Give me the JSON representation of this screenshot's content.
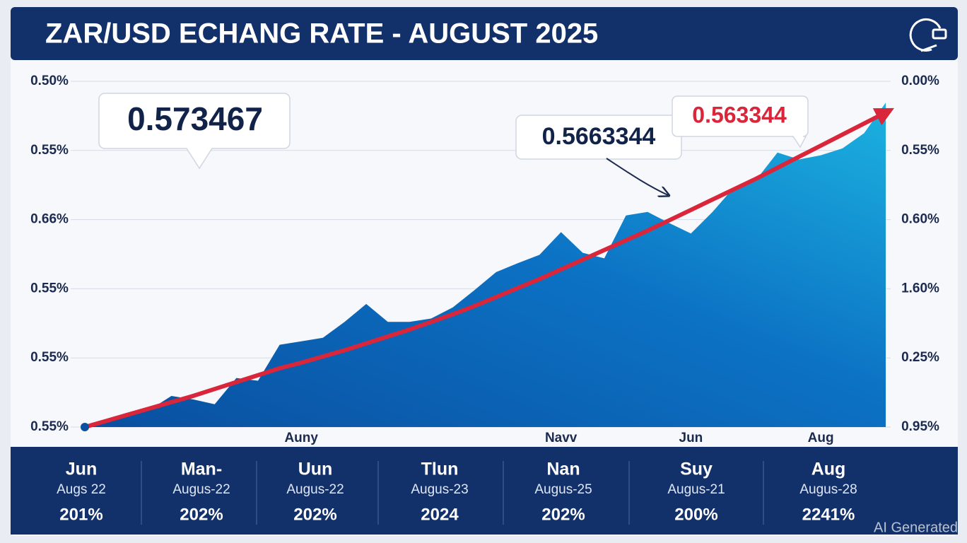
{
  "chart_data": {
    "type": "area",
    "title": "ZAR/USD ECHANG RATE - AUGUST 2025",
    "categories": [
      null,
      null,
      null,
      null,
      null,
      null,
      null,
      null,
      null,
      null,
      "Auny",
      null,
      null,
      null,
      null,
      null,
      null,
      null,
      null,
      null,
      null,
      null,
      "Navv",
      null,
      null,
      null,
      null,
      null,
      "Jun",
      null,
      null,
      null,
      null,
      null,
      "Aug",
      null,
      null,
      null
    ],
    "series": [
      {
        "color": "#0b6cc0",
        "values": [
          0,
          0.06,
          0.17,
          0.25,
          0.45,
          0.4,
          0.33,
          0.71,
          0.67,
          1.19,
          1.24,
          1.29,
          1.52,
          1.78,
          1.52,
          1.52,
          1.57,
          1.73,
          1.98,
          2.24,
          2.37,
          2.49,
          2.82,
          2.52,
          2.44,
          3.06,
          3.11,
          2.95,
          2.8,
          3.11,
          3.47,
          3.57,
          3.97,
          3.87,
          3.93,
          4.03,
          4.25,
          4.69
        ]
      },
      {
        "color": "#d9263a",
        "values": [
          0,
          0.09,
          0.18,
          0.27,
          0.36,
          0.45,
          0.55,
          0.65,
          0.75,
          0.85,
          0.93,
          1.02,
          1.11,
          1.21,
          1.31,
          1.41,
          1.52,
          1.63,
          1.75,
          1.88,
          2.01,
          2.14,
          2.28,
          2.42,
          2.56,
          2.7,
          2.84,
          2.99,
          3.14,
          3.29,
          3.44,
          3.59,
          3.75,
          3.91,
          4.07,
          4.23,
          4.39,
          4.55
        ]
      }
    ],
    "ylim": [
      0,
      5
    ],
    "yticks": [
      {
        "value": 0,
        "label": "0.55%"
      },
      {
        "value": 1,
        "label": "0.55%"
      },
      {
        "value": 2,
        "label": "0.55%"
      },
      {
        "value": 3,
        "label": "0.66%"
      },
      {
        "value": 4,
        "label": "0.55%"
      },
      {
        "value": 5,
        "label": "0.50%"
      }
    ],
    "y2lim": [
      0,
      5
    ],
    "y2ticks": [
      {
        "value": 0,
        "label": "0.95%"
      },
      {
        "value": 1,
        "label": "0.25%"
      },
      {
        "value": 2,
        "label": "1.60%"
      },
      {
        "value": 3,
        "label": "0.60%"
      },
      {
        "value": 4,
        "label": "0.55%"
      },
      {
        "value": 5,
        "label": "0.00%"
      }
    ],
    "grid": true,
    "annotations": [
      "0.573467",
      "0.5663344",
      "0.563344"
    ]
  },
  "summary": [
    {
      "month": "Jun",
      "date": "Augs 22",
      "value": "201%"
    },
    {
      "month": "Man-",
      "date": "Augus-22",
      "value": "202%"
    },
    {
      "month": "Uun",
      "date": "Augus-22",
      "value": "202%"
    },
    {
      "month": "Tlun",
      "date": "Augus-23",
      "value": "2024"
    },
    {
      "month": "Nan",
      "date": "Augus-25",
      "value": "202%"
    },
    {
      "month": "Suy",
      "date": "Augus-21",
      "value": "200%"
    },
    {
      "month": "Aug",
      "date": "Augus-28",
      "value": "2241%"
    }
  ],
  "watermark": "AI Generated"
}
